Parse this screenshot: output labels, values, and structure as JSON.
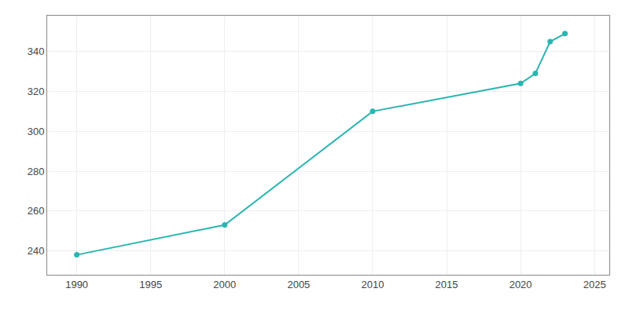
{
  "chart_data": {
    "type": "line",
    "x": [
      1990,
      2000,
      2010,
      2020,
      2021,
      2022,
      2023
    ],
    "values": [
      238,
      253,
      310,
      324,
      329,
      345,
      349
    ],
    "color": "#2ab5b0",
    "marker": "circle",
    "xlim": [
      1988,
      2026
    ],
    "ylim": [
      228,
      358
    ],
    "xticks": [
      1990,
      1995,
      2000,
      2005,
      2010,
      2015,
      2020,
      2025
    ],
    "yticks": [
      240,
      260,
      280,
      300,
      320,
      340
    ],
    "grid": true
  }
}
